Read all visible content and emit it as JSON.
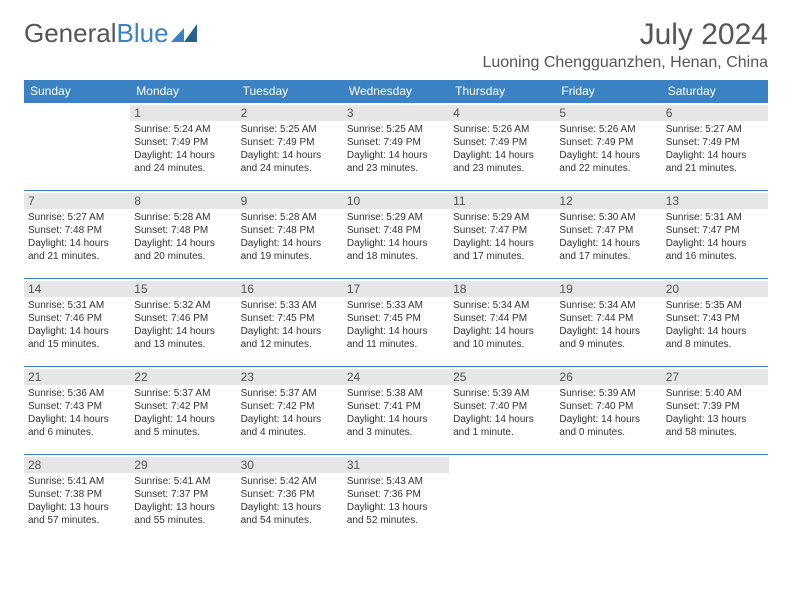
{
  "logo": {
    "text1": "General",
    "text2": "Blue"
  },
  "title": "July 2024",
  "subtitle": "Luoning Chengguanzhen, Henan, China",
  "colors": {
    "header_bg": "#3b82c4",
    "header_text": "#ffffff",
    "daynum_bg": "#e6e6e6",
    "border": "#3b82c4",
    "text": "#333333",
    "title_text": "#555555"
  },
  "days_of_week": [
    "Sunday",
    "Monday",
    "Tuesday",
    "Wednesday",
    "Thursday",
    "Friday",
    "Saturday"
  ],
  "weeks": [
    [
      null,
      {
        "n": "1",
        "sunrise": "5:24 AM",
        "sunset": "7:49 PM",
        "daylight": "14 hours and 24 minutes."
      },
      {
        "n": "2",
        "sunrise": "5:25 AM",
        "sunset": "7:49 PM",
        "daylight": "14 hours and 24 minutes."
      },
      {
        "n": "3",
        "sunrise": "5:25 AM",
        "sunset": "7:49 PM",
        "daylight": "14 hours and 23 minutes."
      },
      {
        "n": "4",
        "sunrise": "5:26 AM",
        "sunset": "7:49 PM",
        "daylight": "14 hours and 23 minutes."
      },
      {
        "n": "5",
        "sunrise": "5:26 AM",
        "sunset": "7:49 PM",
        "daylight": "14 hours and 22 minutes."
      },
      {
        "n": "6",
        "sunrise": "5:27 AM",
        "sunset": "7:49 PM",
        "daylight": "14 hours and 21 minutes."
      }
    ],
    [
      {
        "n": "7",
        "sunrise": "5:27 AM",
        "sunset": "7:48 PM",
        "daylight": "14 hours and 21 minutes."
      },
      {
        "n": "8",
        "sunrise": "5:28 AM",
        "sunset": "7:48 PM",
        "daylight": "14 hours and 20 minutes."
      },
      {
        "n": "9",
        "sunrise": "5:28 AM",
        "sunset": "7:48 PM",
        "daylight": "14 hours and 19 minutes."
      },
      {
        "n": "10",
        "sunrise": "5:29 AM",
        "sunset": "7:48 PM",
        "daylight": "14 hours and 18 minutes."
      },
      {
        "n": "11",
        "sunrise": "5:29 AM",
        "sunset": "7:47 PM",
        "daylight": "14 hours and 17 minutes."
      },
      {
        "n": "12",
        "sunrise": "5:30 AM",
        "sunset": "7:47 PM",
        "daylight": "14 hours and 17 minutes."
      },
      {
        "n": "13",
        "sunrise": "5:31 AM",
        "sunset": "7:47 PM",
        "daylight": "14 hours and 16 minutes."
      }
    ],
    [
      {
        "n": "14",
        "sunrise": "5:31 AM",
        "sunset": "7:46 PM",
        "daylight": "14 hours and 15 minutes."
      },
      {
        "n": "15",
        "sunrise": "5:32 AM",
        "sunset": "7:46 PM",
        "daylight": "14 hours and 13 minutes."
      },
      {
        "n": "16",
        "sunrise": "5:33 AM",
        "sunset": "7:45 PM",
        "daylight": "14 hours and 12 minutes."
      },
      {
        "n": "17",
        "sunrise": "5:33 AM",
        "sunset": "7:45 PM",
        "daylight": "14 hours and 11 minutes."
      },
      {
        "n": "18",
        "sunrise": "5:34 AM",
        "sunset": "7:44 PM",
        "daylight": "14 hours and 10 minutes."
      },
      {
        "n": "19",
        "sunrise": "5:34 AM",
        "sunset": "7:44 PM",
        "daylight": "14 hours and 9 minutes."
      },
      {
        "n": "20",
        "sunrise": "5:35 AM",
        "sunset": "7:43 PM",
        "daylight": "14 hours and 8 minutes."
      }
    ],
    [
      {
        "n": "21",
        "sunrise": "5:36 AM",
        "sunset": "7:43 PM",
        "daylight": "14 hours and 6 minutes."
      },
      {
        "n": "22",
        "sunrise": "5:37 AM",
        "sunset": "7:42 PM",
        "daylight": "14 hours and 5 minutes."
      },
      {
        "n": "23",
        "sunrise": "5:37 AM",
        "sunset": "7:42 PM",
        "daylight": "14 hours and 4 minutes."
      },
      {
        "n": "24",
        "sunrise": "5:38 AM",
        "sunset": "7:41 PM",
        "daylight": "14 hours and 3 minutes."
      },
      {
        "n": "25",
        "sunrise": "5:39 AM",
        "sunset": "7:40 PM",
        "daylight": "14 hours and 1 minute."
      },
      {
        "n": "26",
        "sunrise": "5:39 AM",
        "sunset": "7:40 PM",
        "daylight": "14 hours and 0 minutes."
      },
      {
        "n": "27",
        "sunrise": "5:40 AM",
        "sunset": "7:39 PM",
        "daylight": "13 hours and 58 minutes."
      }
    ],
    [
      {
        "n": "28",
        "sunrise": "5:41 AM",
        "sunset": "7:38 PM",
        "daylight": "13 hours and 57 minutes."
      },
      {
        "n": "29",
        "sunrise": "5:41 AM",
        "sunset": "7:37 PM",
        "daylight": "13 hours and 55 minutes."
      },
      {
        "n": "30",
        "sunrise": "5:42 AM",
        "sunset": "7:36 PM",
        "daylight": "13 hours and 54 minutes."
      },
      {
        "n": "31",
        "sunrise": "5:43 AM",
        "sunset": "7:36 PM",
        "daylight": "13 hours and 52 minutes."
      },
      null,
      null,
      null
    ]
  ],
  "labels": {
    "sunrise": "Sunrise:",
    "sunset": "Sunset:",
    "daylight": "Daylight:"
  }
}
